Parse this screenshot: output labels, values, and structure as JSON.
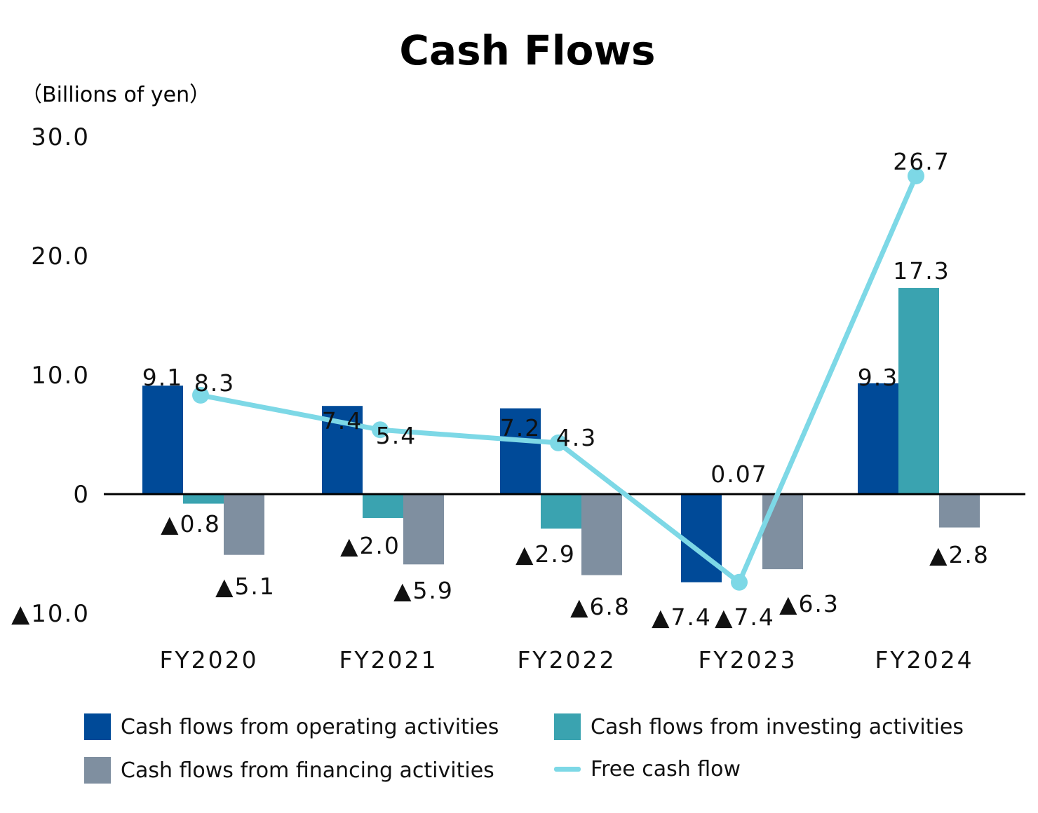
{
  "chart_data": {
    "type": "bar",
    "title": "Cash Flows",
    "unit_label": "（Billions of yen）",
    "categories": [
      "FY2020",
      "FY2021",
      "FY2022",
      "FY2023",
      "FY2024"
    ],
    "ylim": [
      -10,
      30
    ],
    "yticks": [
      {
        "value": 30,
        "label": "30.0"
      },
      {
        "value": 20,
        "label": "20.0"
      },
      {
        "value": 10,
        "label": "10.0"
      },
      {
        "value": 0,
        "label": "0"
      },
      {
        "value": -10,
        "label": "▲10.0"
      }
    ],
    "series": [
      {
        "name": "Cash flows from operating activities",
        "kind": "bar",
        "color": "#004a98",
        "values": [
          9.1,
          7.4,
          7.2,
          -7.4,
          9.3
        ],
        "labels": [
          "9.1",
          "7.4",
          "7.2",
          "▲7.4",
          "9.3"
        ]
      },
      {
        "name": "Cash flows from investing activities",
        "kind": "bar",
        "color": "#3aa3b0",
        "values": [
          -0.8,
          -2.0,
          -2.9,
          0.07,
          17.3
        ],
        "labels": [
          "▲0.8",
          "▲2.0",
          "▲2.9",
          "0.07",
          "17.3"
        ]
      },
      {
        "name": "Cash flows from financing activities",
        "kind": "bar",
        "color": "#7f8fa0",
        "values": [
          -5.1,
          -5.9,
          -6.8,
          -6.3,
          -2.8
        ],
        "labels": [
          "▲5.1",
          "▲5.9",
          "▲6.8",
          "▲6.3",
          "▲2.8"
        ]
      },
      {
        "name": "Free cash flow",
        "kind": "line",
        "color": "#7dd8e6",
        "values": [
          8.3,
          5.4,
          4.3,
          -7.4,
          26.7
        ],
        "labels": [
          "8.3",
          "5.4",
          "4.3",
          "▲7.4",
          "26.7"
        ]
      }
    ],
    "legend_position": "bottom",
    "grid": false
  }
}
